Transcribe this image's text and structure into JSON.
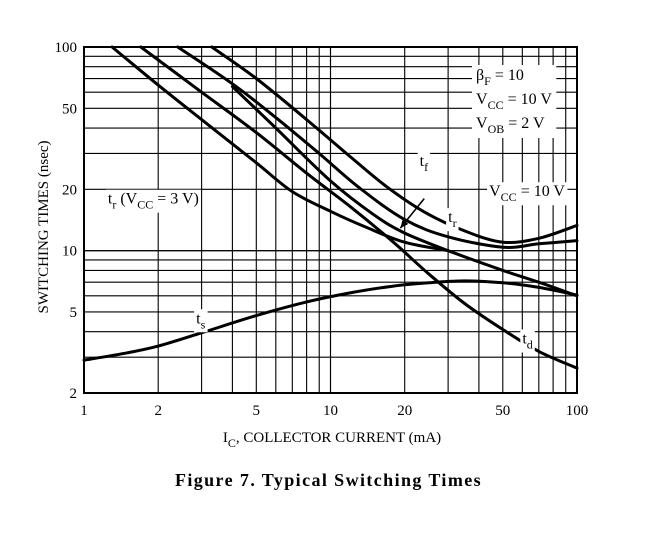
{
  "caption": "Figure 7. Typical Switching Times",
  "chart_data": {
    "type": "line",
    "xscale": "log",
    "yscale": "log",
    "xlim": [
      1,
      100
    ],
    "ylim": [
      2,
      100
    ],
    "grid": true,
    "xlabel_main": "I",
    "xlabel_sub": "C",
    "xlabel_rest": ", COLLECTOR CURRENT (mA)",
    "ylabel": "SWITCHING TIMES (nsec)",
    "xticks": [
      1,
      2,
      5,
      10,
      20,
      50,
      100
    ],
    "yticks": [
      2,
      5,
      10,
      20,
      50,
      100
    ],
    "conditions": [
      {
        "main": "β",
        "sub": "F",
        "rest": " = 10"
      },
      {
        "main": "V",
        "sub": "CC",
        "rest": " = 10 V"
      },
      {
        "main": "V",
        "sub": "OB",
        "rest": " = 2 V"
      }
    ],
    "series": [
      {
        "name": "t_r (V_CC = 3 V)",
        "x": [
          1.3,
          2,
          3,
          5,
          7,
          10,
          14,
          20,
          30
        ],
        "y": [
          100,
          65,
          44,
          27,
          19.5,
          15.6,
          13,
          11,
          10
        ]
      },
      {
        "name": "t_d",
        "x": [
          1.7,
          3,
          5,
          8,
          12,
          18,
          25,
          35,
          50,
          70,
          100
        ],
        "y": [
          100,
          60,
          38,
          24,
          16.5,
          11,
          7.7,
          5.5,
          4.1,
          3.2,
          2.65
        ]
      },
      {
        "name": "t_r",
        "x": [
          2.4,
          4,
          6,
          9,
          13,
          20,
          30,
          50,
          70,
          100
        ],
        "y": [
          100,
          66,
          45,
          30,
          20.5,
          14.2,
          11.7,
          10.4,
          10.8,
          11.2
        ]
      },
      {
        "name": "t_f",
        "x": [
          3.3,
          5,
          8,
          12,
          17,
          24,
          35,
          50,
          70,
          100
        ],
        "y": [
          100,
          70,
          44,
          29,
          20.5,
          15.5,
          12.5,
          11,
          11.5,
          13.3
        ]
      },
      {
        "name": "t_s",
        "x": [
          1,
          1.5,
          2,
          3,
          5,
          8,
          12,
          18,
          25,
          35,
          50,
          70,
          100
        ],
        "y": [
          2.9,
          3.15,
          3.4,
          3.95,
          4.8,
          5.6,
          6.2,
          6.7,
          6.95,
          7.1,
          6.95,
          6.6,
          6.05
        ]
      },
      {
        "name": "V_CC = 10 V",
        "x": [
          4,
          6,
          10,
          15,
          20,
          30,
          50,
          70,
          100
        ],
        "y": [
          64,
          40,
          22,
          15,
          12.2,
          10,
          8,
          7,
          6
        ]
      }
    ],
    "labels": [
      {
        "text": "t_r (V_CC = 3 V)",
        "main": "t",
        "sub": "r",
        "rest": " (V",
        "sub2": "CC",
        "rest2": " = 3 V)",
        "x": 1.25,
        "y": 17
      },
      {
        "text": "t_f",
        "main": "t",
        "sub": "f",
        "x": 23,
        "y": 26
      },
      {
        "text": "t_r",
        "main": "t",
        "sub": "r",
        "x": 30,
        "y": 13.8
      },
      {
        "text": "V_CC = 10 V",
        "main": "V",
        "sub": "CC",
        "rest": " = 10 V",
        "x": 44,
        "y": 18.5
      },
      {
        "text": "t_s",
        "main": "t",
        "sub": "s",
        "x": 2.85,
        "y": 4.4
      },
      {
        "text": "t_d",
        "main": "t",
        "sub": "d",
        "x": 60,
        "y": 3.5
      }
    ],
    "arrow": {
      "from": [
        24,
        18
      ],
      "to": [
        19.2,
        12.9
      ]
    }
  }
}
